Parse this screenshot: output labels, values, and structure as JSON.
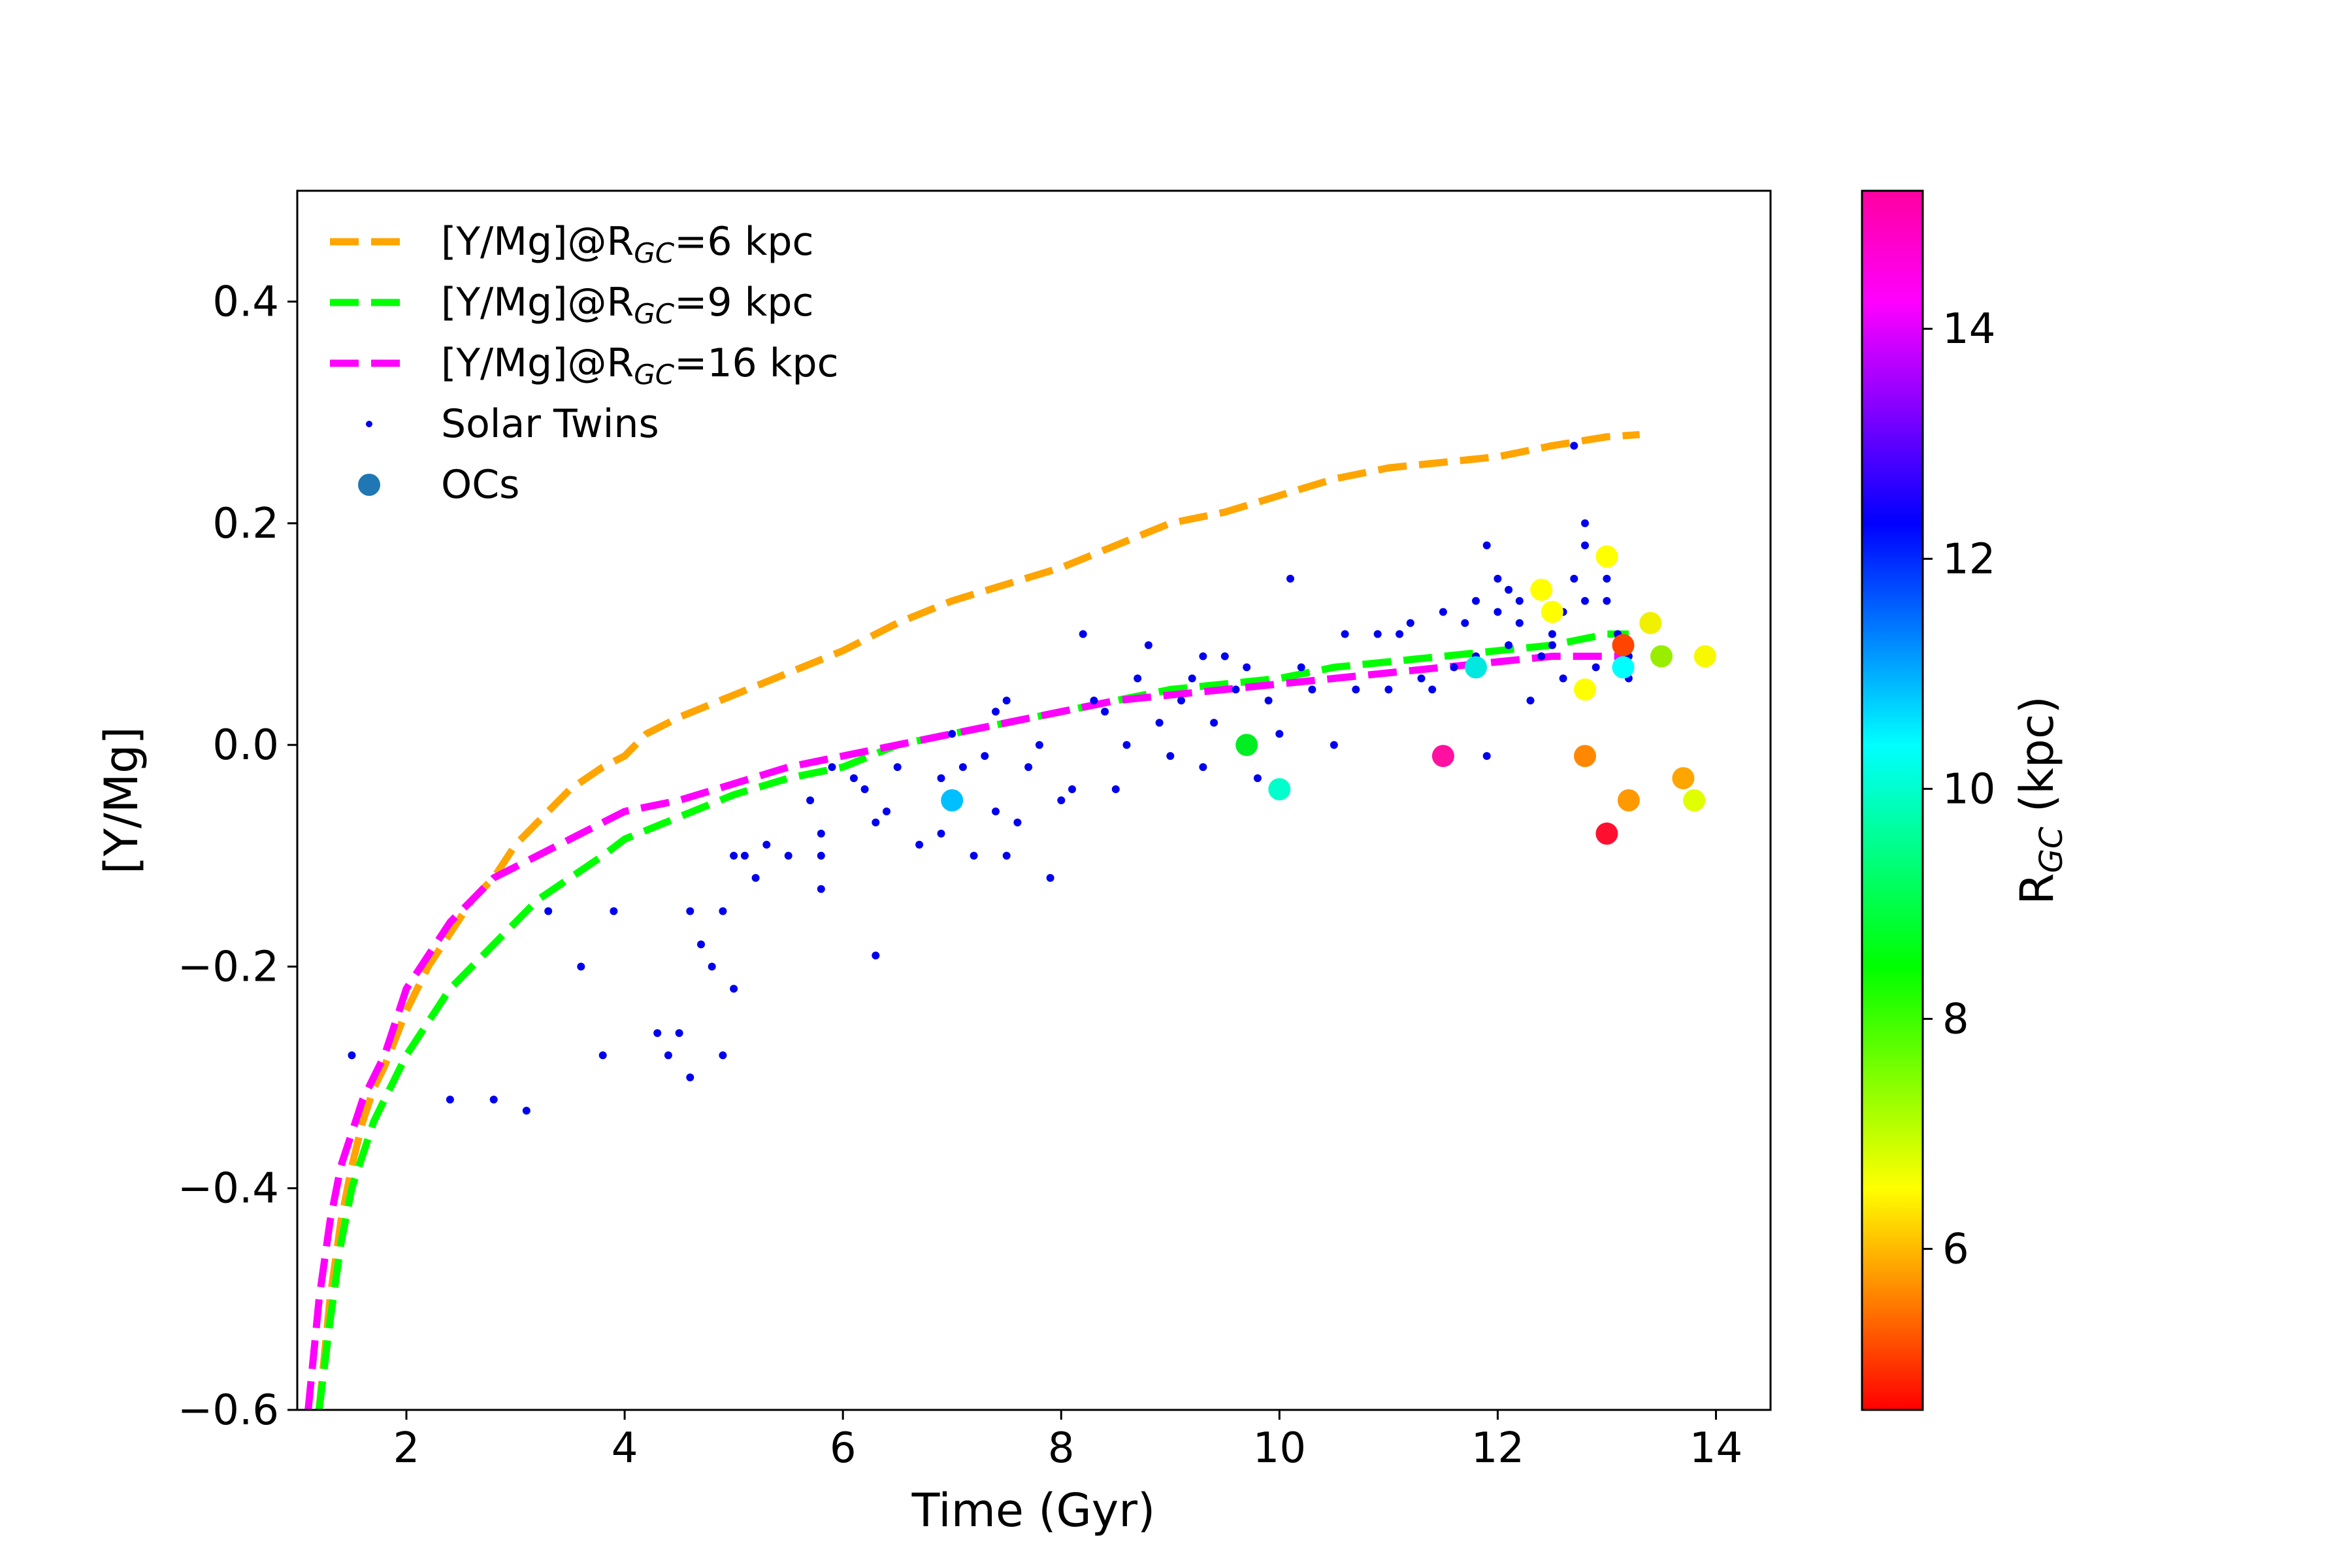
{
  "chart_data": {
    "type": "scatter",
    "title": "",
    "xlabel": "Time (Gyr)",
    "ylabel": "[Y/Mg]",
    "xlim": [
      1.0,
      14.5
    ],
    "ylim": [
      -0.6,
      0.5
    ],
    "xticks": [
      2,
      4,
      6,
      8,
      10,
      12,
      14
    ],
    "xtick_labels": [
      "2",
      "4",
      "6",
      "8",
      "10",
      "12",
      "14"
    ],
    "yticks": [
      -0.6,
      -0.4,
      -0.2,
      0.0,
      0.2,
      0.4
    ],
    "ytick_labels": [
      "−0.6",
      "−0.4",
      "−0.2",
      "0.0",
      "0.2",
      "0.4"
    ],
    "grid": false,
    "legend_position": "top-left",
    "series": [
      {
        "name": "[Y/Mg]@R_GC=6 kpc",
        "legend_prefix": "[Y/Mg]@R",
        "legend_sub": "GC",
        "legend_suffix": "=6 kpc",
        "style": "dashed",
        "color": "#FFA500",
        "x": [
          1.2,
          1.3,
          1.4,
          1.5,
          1.6,
          1.7,
          1.8,
          2.0,
          2.2,
          2.4,
          2.6,
          2.8,
          3.0,
          3.2,
          3.5,
          3.8,
          4.0,
          4.2,
          4.5,
          5.0,
          5.5,
          6.0,
          6.5,
          7.0,
          7.5,
          8.0,
          8.5,
          9.0,
          9.5,
          10.0,
          10.5,
          11.0,
          11.5,
          12.0,
          12.5,
          13.0,
          13.3
        ],
        "y": [
          -0.6,
          -0.5,
          -0.43,
          -0.38,
          -0.34,
          -0.31,
          -0.29,
          -0.24,
          -0.2,
          -0.17,
          -0.14,
          -0.12,
          -0.09,
          -0.07,
          -0.04,
          -0.02,
          -0.01,
          0.01,
          0.025,
          0.045,
          0.065,
          0.085,
          0.11,
          0.13,
          0.145,
          0.16,
          0.18,
          0.2,
          0.21,
          0.225,
          0.24,
          0.25,
          0.255,
          0.26,
          0.27,
          0.278,
          0.28
        ]
      },
      {
        "name": "[Y/Mg]@R_GC=9 kpc",
        "legend_prefix": "[Y/Mg]@R",
        "legend_sub": "GC",
        "legend_suffix": "=9 kpc",
        "style": "dashed",
        "color": "#00FF00",
        "x": [
          1.2,
          1.3,
          1.4,
          1.5,
          1.6,
          1.7,
          1.8,
          2.0,
          2.2,
          2.4,
          2.6,
          2.8,
          3.0,
          3.2,
          3.5,
          3.8,
          4.0,
          4.5,
          5.0,
          5.5,
          6.0,
          6.5,
          7.0,
          7.5,
          8.0,
          8.5,
          9.0,
          9.5,
          10.0,
          10.5,
          11.0,
          11.5,
          12.0,
          12.5,
          13.0,
          13.2
        ],
        "y": [
          -0.6,
          -0.52,
          -0.45,
          -0.4,
          -0.37,
          -0.34,
          -0.32,
          -0.28,
          -0.25,
          -0.22,
          -0.2,
          -0.18,
          -0.16,
          -0.14,
          -0.12,
          -0.1,
          -0.085,
          -0.065,
          -0.045,
          -0.03,
          -0.02,
          0.0,
          0.01,
          0.02,
          0.03,
          0.04,
          0.05,
          0.055,
          0.06,
          0.07,
          0.075,
          0.08,
          0.085,
          0.09,
          0.1,
          0.1
        ]
      },
      {
        "name": "[Y/Mg]@R_GC=16 kpc",
        "legend_prefix": "[Y/Mg]@R",
        "legend_sub": "GC",
        "legend_suffix": "=16 kpc",
        "style": "dashed",
        "color": "#FF00FF",
        "x": [
          1.1,
          1.2,
          1.3,
          1.4,
          1.5,
          1.6,
          1.7,
          1.8,
          2.0,
          2.2,
          2.4,
          2.6,
          2.8,
          3.0,
          3.2,
          3.5,
          3.8,
          4.0,
          4.5,
          5.0,
          5.5,
          6.0,
          6.5,
          7.0,
          7.5,
          8.0,
          8.5,
          9.0,
          9.5,
          10.0,
          10.5,
          11.0,
          11.5,
          12.0,
          12.5,
          13.0,
          13.2
        ],
        "y": [
          -0.6,
          -0.5,
          -0.43,
          -0.38,
          -0.35,
          -0.32,
          -0.3,
          -0.28,
          -0.22,
          -0.19,
          -0.16,
          -0.14,
          -0.12,
          -0.11,
          -0.1,
          -0.085,
          -0.07,
          -0.06,
          -0.05,
          -0.035,
          -0.02,
          -0.01,
          0.0,
          0.01,
          0.02,
          0.03,
          0.04,
          0.045,
          0.05,
          0.055,
          0.06,
          0.065,
          0.07,
          0.075,
          0.08,
          0.08,
          0.08
        ]
      }
    ],
    "solar_twins": {
      "name": "Solar Twins",
      "color": "#0000EE",
      "x": [
        1.5,
        2.4,
        2.8,
        3.1,
        3.3,
        3.6,
        3.8,
        3.9,
        4.3,
        4.4,
        4.5,
        4.6,
        4.6,
        4.7,
        4.8,
        4.9,
        4.9,
        5.0,
        5.0,
        5.1,
        5.2,
        5.3,
        5.5,
        5.7,
        5.8,
        5.8,
        5.8,
        5.9,
        6.1,
        6.2,
        6.3,
        6.3,
        6.4,
        6.5,
        6.7,
        6.9,
        6.9,
        7.0,
        7.1,
        7.2,
        7.3,
        7.4,
        7.4,
        7.5,
        7.5,
        7.6,
        7.7,
        7.8,
        7.9,
        8.0,
        8.1,
        8.2,
        8.3,
        8.4,
        8.5,
        8.6,
        8.7,
        8.8,
        8.9,
        9.0,
        9.1,
        9.2,
        9.3,
        9.3,
        9.4,
        9.5,
        9.6,
        9.7,
        9.8,
        9.9,
        10.0,
        10.1,
        10.2,
        10.3,
        10.5,
        10.6,
        10.7,
        10.9,
        11.0,
        11.1,
        11.2,
        11.3,
        11.4,
        11.5,
        11.6,
        11.7,
        11.8,
        11.8,
        11.9,
        11.9,
        12.0,
        12.0,
        12.1,
        12.1,
        12.2,
        12.2,
        12.3,
        12.4,
        12.5,
        12.5,
        12.6,
        12.6,
        12.7,
        12.7,
        12.8,
        12.8,
        12.8,
        12.9,
        13.0,
        13.0,
        13.1,
        13.1,
        13.2,
        13.2
      ],
      "y": [
        -0.28,
        -0.32,
        -0.32,
        -0.33,
        -0.15,
        -0.2,
        -0.28,
        -0.15,
        -0.26,
        -0.28,
        -0.26,
        -0.3,
        -0.15,
        -0.18,
        -0.2,
        -0.15,
        -0.28,
        -0.1,
        -0.22,
        -0.1,
        -0.12,
        -0.09,
        -0.1,
        -0.05,
        -0.13,
        -0.08,
        -0.1,
        -0.02,
        -0.03,
        -0.04,
        -0.07,
        -0.19,
        -0.06,
        -0.02,
        -0.09,
        -0.08,
        -0.03,
        0.01,
        -0.02,
        -0.1,
        -0.01,
        0.03,
        -0.06,
        0.04,
        -0.1,
        -0.07,
        -0.02,
        0.0,
        -0.12,
        -0.05,
        -0.04,
        0.1,
        0.04,
        0.03,
        -0.04,
        0.0,
        0.06,
        0.09,
        0.02,
        -0.01,
        0.04,
        0.06,
        0.08,
        -0.02,
        0.02,
        0.08,
        0.05,
        0.07,
        -0.03,
        0.04,
        0.01,
        0.15,
        0.07,
        0.05,
        0.0,
        0.1,
        0.05,
        0.1,
        0.05,
        0.1,
        0.11,
        0.06,
        0.05,
        0.12,
        0.07,
        0.11,
        0.13,
        0.08,
        0.18,
        -0.01,
        0.15,
        0.12,
        0.14,
        0.09,
        0.13,
        0.11,
        0.04,
        0.08,
        0.1,
        0.09,
        0.12,
        0.06,
        0.15,
        0.27,
        0.2,
        0.18,
        0.13,
        0.07,
        0.15,
        0.13,
        0.1,
        0.09,
        0.06,
        0.08
      ]
    },
    "open_clusters": {
      "name": "OCs",
      "legend_color": "#1f77b4",
      "points": [
        {
          "x": 7.0,
          "y": -0.05,
          "rgc": 11.2,
          "color": "#00BFFF"
        },
        {
          "x": 9.7,
          "y": 0.0,
          "rgc": 9.0,
          "color": "#00EE22"
        },
        {
          "x": 10.0,
          "y": -0.04,
          "rgc": 10.5,
          "color": "#00FFCC"
        },
        {
          "x": 11.5,
          "y": -0.01,
          "rgc": 15.0,
          "color": "#FF10A0"
        },
        {
          "x": 11.8,
          "y": 0.07,
          "rgc": 10.8,
          "color": "#00E8E0"
        },
        {
          "x": 12.4,
          "y": 0.14,
          "rgc": 7.0,
          "color": "#FFFF00"
        },
        {
          "x": 12.5,
          "y": 0.12,
          "rgc": 7.0,
          "color": "#FFFF00"
        },
        {
          "x": 12.8,
          "y": 0.05,
          "rgc": 7.0,
          "color": "#FFFF00"
        },
        {
          "x": 12.8,
          "y": -0.01,
          "rgc": 6.0,
          "color": "#FF8800"
        },
        {
          "x": 13.0,
          "y": 0.17,
          "rgc": 7.0,
          "color": "#FFFF00"
        },
        {
          "x": 13.0,
          "y": -0.08,
          "rgc": 4.8,
          "color": "#FF1030"
        },
        {
          "x": 13.15,
          "y": 0.09,
          "rgc": 5.2,
          "color": "#FF4400"
        },
        {
          "x": 13.15,
          "y": 0.07,
          "rgc": 10.8,
          "color": "#00FFFF"
        },
        {
          "x": 13.2,
          "y": -0.05,
          "rgc": 6.0,
          "color": "#FF9900"
        },
        {
          "x": 13.4,
          "y": 0.11,
          "rgc": 7.0,
          "color": "#F0F000"
        },
        {
          "x": 13.5,
          "y": 0.08,
          "rgc": 8.0,
          "color": "#99EE00"
        },
        {
          "x": 13.7,
          "y": -0.03,
          "rgc": 6.2,
          "color": "#FFA500"
        },
        {
          "x": 13.8,
          "y": -0.05,
          "rgc": 7.0,
          "color": "#E0FF00"
        },
        {
          "x": 13.9,
          "y": 0.08,
          "rgc": 7.0,
          "color": "#F8F800"
        }
      ]
    },
    "colorbar": {
      "label_prefix": "R",
      "label_sub": "GC",
      "label_suffix": " (kpc)",
      "range": [
        4.6,
        15.2
      ],
      "ticks": [
        6,
        8,
        10,
        12,
        14
      ],
      "tick_labels": [
        "6",
        "8",
        "10",
        "12",
        "14"
      ],
      "gradient": [
        "#FF0000",
        "#FF8000",
        "#FFFF00",
        "#80FF00",
        "#00FF00",
        "#00FF80",
        "#00FFFF",
        "#0080FF",
        "#0000FF",
        "#8000FF",
        "#FF00FF",
        "#FF00A0"
      ]
    }
  }
}
